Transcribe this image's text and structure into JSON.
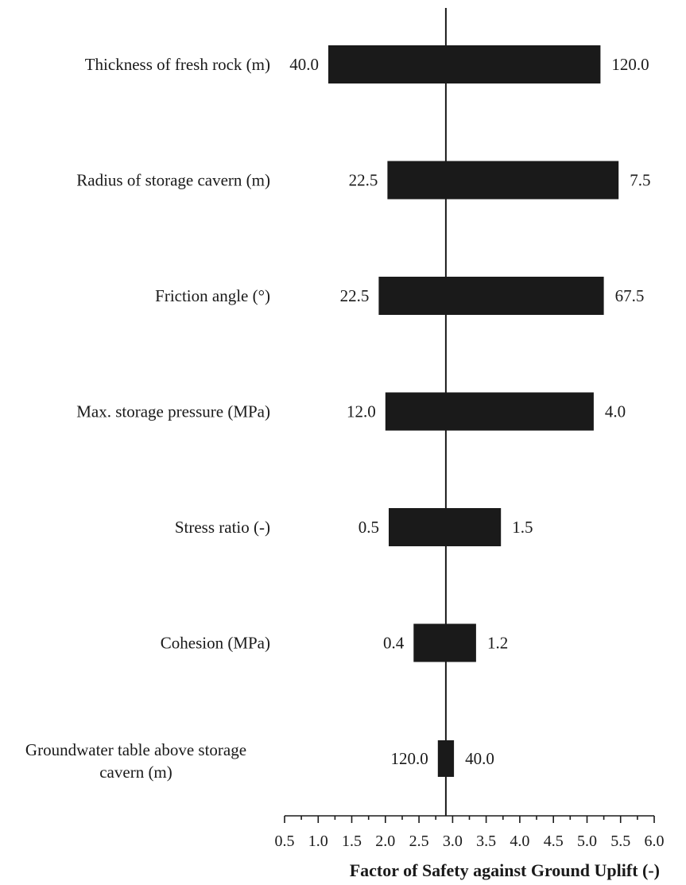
{
  "chart_data": {
    "type": "tornado",
    "xlabel": "Factor of Safety against Ground Uplift (-)",
    "xlim": [
      0.5,
      6.0
    ],
    "xticks": [
      "0.5",
      "1.0",
      "1.5",
      "2.0",
      "2.5",
      "3.0",
      "3.5",
      "4.0",
      "4.5",
      "5.0",
      "5.5",
      "6.0"
    ],
    "baseline": 2.9,
    "parameters": [
      {
        "label_lines": [
          "Thickness of fresh rock (m)"
        ],
        "low_label": "40.0",
        "high_label": "120.0",
        "low_fs": 1.15,
        "high_fs": 5.2
      },
      {
        "label_lines": [
          "Radius of storage cavern (m)"
        ],
        "low_label": "22.5",
        "high_label": "7.5",
        "low_fs": 2.03,
        "high_fs": 5.47
      },
      {
        "label_lines": [
          "Friction angle (°)"
        ],
        "low_label": "22.5",
        "high_label": "67.5",
        "low_fs": 1.9,
        "high_fs": 5.25
      },
      {
        "label_lines": [
          "Max. storage pressure (MPa)"
        ],
        "low_label": "12.0",
        "high_label": "4.0",
        "low_fs": 2.0,
        "high_fs": 5.1
      },
      {
        "label_lines": [
          "Stress ratio (-)"
        ],
        "low_label": "0.5",
        "high_label": "1.5",
        "low_fs": 2.05,
        "high_fs": 3.72
      },
      {
        "label_lines": [
          "Cohesion (MPa)"
        ],
        "low_label": "0.4",
        "high_label": "1.2",
        "low_fs": 2.42,
        "high_fs": 3.35
      },
      {
        "label_lines": [
          "Groundwater table above storage",
          "cavern (m)"
        ],
        "low_label": "120.0",
        "high_label": "40.0",
        "low_fs": 2.78,
        "high_fs": 3.02
      }
    ]
  }
}
